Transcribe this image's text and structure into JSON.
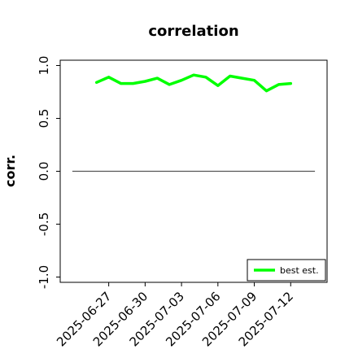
{
  "chart_data": {
    "type": "line",
    "title": "correlation",
    "xlabel": "",
    "ylabel": "corr.",
    "ylim": [
      -1.05,
      1.05
    ],
    "yticks": [
      "-1.0",
      "-0.5",
      "0.0",
      "0.5",
      "1.0"
    ],
    "ytick_values": [
      -1.0,
      -0.5,
      0.0,
      0.5,
      1.0
    ],
    "xlim": [
      "2025-06-23",
      "2025-07-15"
    ],
    "xticks": [
      "2025-06-27",
      "2025-06-30",
      "2025-07-03",
      "2025-07-06",
      "2025-07-09",
      "2025-07-12"
    ],
    "highlighted_xtick": "2025-07-03",
    "highlight_color": "#1a8a1a",
    "grid": false,
    "legend_placement": "bottom-right",
    "reference_line": {
      "y": 0.0,
      "x_start": "2025-06-24",
      "x_end": "2025-07-14",
      "color": "#555555"
    },
    "series": [
      {
        "name": "best est.",
        "color": "#00ff00",
        "x": [
          "2025-06-26",
          "2025-06-27",
          "2025-06-28",
          "2025-06-29",
          "2025-06-30",
          "2025-07-01",
          "2025-07-02",
          "2025-07-03",
          "2025-07-04",
          "2025-07-05",
          "2025-07-06",
          "2025-07-07",
          "2025-07-08",
          "2025-07-09",
          "2025-07-10",
          "2025-07-11",
          "2025-07-12"
        ],
        "y": [
          0.84,
          0.89,
          0.83,
          0.83,
          0.85,
          0.88,
          0.82,
          0.86,
          0.91,
          0.89,
          0.81,
          0.9,
          0.88,
          0.86,
          0.76,
          0.82,
          0.83
        ]
      }
    ]
  }
}
